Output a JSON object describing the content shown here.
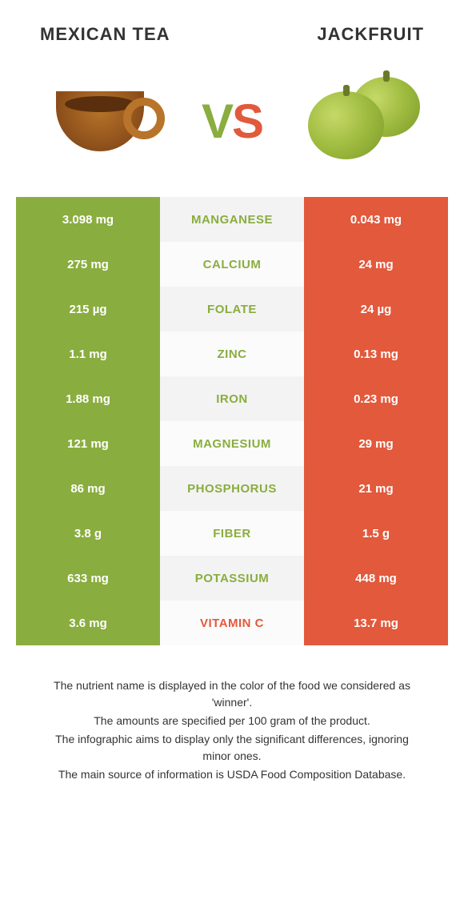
{
  "header": {
    "left_title": "Mexican tea",
    "right_title": "Jackfruit",
    "vs_v": "V",
    "vs_s": "S"
  },
  "colors": {
    "left_cell": "#8aad3f",
    "right_cell": "#e2593c",
    "mid_bg_dark": "#f3f3f3",
    "mid_bg_light": "#fbfbfb",
    "left_winner_text": "#8aad3f",
    "right_winner_text": "#e2593c"
  },
  "rows": [
    {
      "left": "3.098 mg",
      "label": "Manganese",
      "right": "0.043 mg",
      "winner": "left"
    },
    {
      "left": "275 mg",
      "label": "Calcium",
      "right": "24 mg",
      "winner": "left"
    },
    {
      "left": "215 µg",
      "label": "Folate",
      "right": "24 µg",
      "winner": "left"
    },
    {
      "left": "1.1 mg",
      "label": "Zinc",
      "right": "0.13 mg",
      "winner": "left"
    },
    {
      "left": "1.88 mg",
      "label": "Iron",
      "right": "0.23 mg",
      "winner": "left"
    },
    {
      "left": "121 mg",
      "label": "Magnesium",
      "right": "29 mg",
      "winner": "left"
    },
    {
      "left": "86 mg",
      "label": "Phosphorus",
      "right": "21 mg",
      "winner": "left"
    },
    {
      "left": "3.8 g",
      "label": "Fiber",
      "right": "1.5 g",
      "winner": "left"
    },
    {
      "left": "633 mg",
      "label": "Potassium",
      "right": "448 mg",
      "winner": "left"
    },
    {
      "left": "3.6 mg",
      "label": "Vitamin C",
      "right": "13.7 mg",
      "winner": "right"
    }
  ],
  "footer": [
    "The nutrient name is displayed in the color of the food we considered as 'winner'.",
    "The amounts are specified per 100 gram of the product.",
    "The infographic aims to display only the significant differences, ignoring minor ones.",
    "The main source of information is USDA Food Composition Database."
  ]
}
